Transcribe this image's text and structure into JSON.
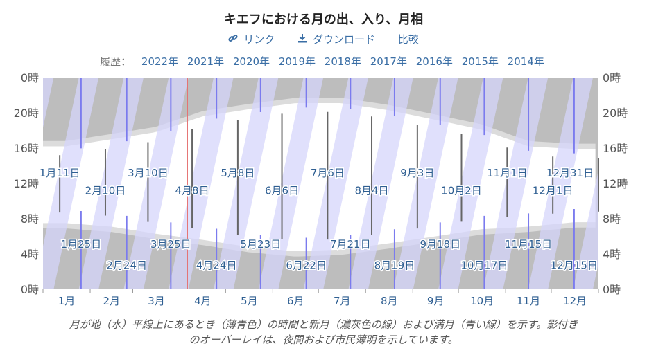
{
  "title": "キエフにおける月の出、入り、月相",
  "toolbar": {
    "link_label": "リンク",
    "download_label": "ダウンロード",
    "compare_label": "比較"
  },
  "history": {
    "label": "履歴：",
    "years": [
      "2022年",
      "2021年",
      "2020年",
      "2019年",
      "2018年",
      "2017年",
      "2016年",
      "2015年",
      "2014年"
    ]
  },
  "caption_line1": "月が地（水）平線上にあるとき（薄青色）の時間と新月（濃灰色の線）および満月（青い線）を示す。影付き",
  "caption_line2": "のオーバーレイは、夜間および市民薄明を示しています。",
  "colors": {
    "night": "#bdbdbd",
    "twilight": "#dcdcdc",
    "moon_up": "#d6d6fb",
    "new_moon": "#666666",
    "full_moon": "#7b7bee",
    "today": "#e57373",
    "label": "#2f5f92"
  },
  "chart_data": {
    "type": "area",
    "title": "",
    "ylim": [
      0,
      24
    ],
    "y_ticks": [
      "0時",
      "4時",
      "8時",
      "12時",
      "16時",
      "20時",
      "0時"
    ],
    "months": [
      "1月",
      "2月",
      "3月",
      "4月",
      "5月",
      "6月",
      "7月",
      "8月",
      "9月",
      "10月",
      "11月",
      "12月"
    ],
    "sunrise_hours": [
      7.5,
      7.1,
      6.3,
      5.6,
      4.8,
      4.3,
      4.5,
      5.2,
      6.0,
      6.8,
      7.1,
      7.6
    ],
    "sunset_hours": [
      16.2,
      17.0,
      17.8,
      19.6,
      20.4,
      21.1,
      21.1,
      20.3,
      19.2,
      18.1,
      16.2,
      15.9
    ],
    "today_day": 95,
    "new_moons": [
      {
        "day": 11,
        "label": "1月11日"
      },
      {
        "day": 41,
        "label": "2月10日"
      },
      {
        "day": 69,
        "label": "3月10日"
      },
      {
        "day": 98,
        "label": "4月8日"
      },
      {
        "day": 128,
        "label": "5月8日"
      },
      {
        "day": 157,
        "label": "6月6日"
      },
      {
        "day": 187,
        "label": "7月6日"
      },
      {
        "day": 216,
        "label": "8月4日"
      },
      {
        "day": 246,
        "label": "9月3日"
      },
      {
        "day": 275,
        "label": "10月2日"
      },
      {
        "day": 305,
        "label": "11月1日"
      },
      {
        "day": 335,
        "label": "12月1日"
      },
      {
        "day": 365,
        "label": "12月31日"
      }
    ],
    "full_moons": [
      {
        "day": 25,
        "label": "1月25日"
      },
      {
        "day": 55,
        "label": "2月24日"
      },
      {
        "day": 84,
        "label": "3月25日"
      },
      {
        "day": 114,
        "label": "4月24日"
      },
      {
        "day": 143,
        "label": "5月23日"
      },
      {
        "day": 173,
        "label": "6月22日"
      },
      {
        "day": 202,
        "label": "7月21日"
      },
      {
        "day": 231,
        "label": "8月19日"
      },
      {
        "day": 261,
        "label": "9月18日"
      },
      {
        "day": 290,
        "label": "10月17日"
      },
      {
        "day": 319,
        "label": "11月15日"
      },
      {
        "day": 349,
        "label": "12月15日"
      }
    ]
  }
}
